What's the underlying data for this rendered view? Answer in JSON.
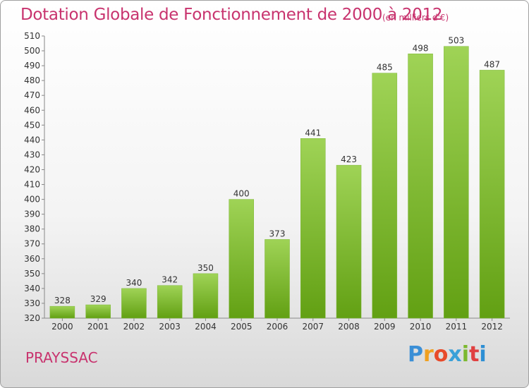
{
  "header": {
    "title": "Dotation Globale de Fonctionnement de 2000 à 2012",
    "unit": "(en milliers d'€)"
  },
  "footer": {
    "commune": "PRAYSSAC",
    "logo_letters": [
      "P",
      "r",
      "o",
      "x",
      "i",
      "t",
      "i"
    ],
    "logo_colors": [
      "#3b8fd6",
      "#f0a020",
      "#e84a2a",
      "#3aa0d8",
      "#7cb82f",
      "#e04040",
      "#2e8fd4"
    ]
  },
  "chart_data": {
    "type": "bar",
    "title": "Dotation Globale de Fonctionnement de 2000 à 2012",
    "subtitle": "(en milliers d'€)",
    "xlabel": "",
    "ylabel": "",
    "categories": [
      "2000",
      "2001",
      "2002",
      "2003",
      "2004",
      "2005",
      "2006",
      "2007",
      "2008",
      "2009",
      "2010",
      "2011",
      "2012"
    ],
    "values": [
      328,
      329,
      340,
      342,
      350,
      400,
      373,
      441,
      423,
      485,
      498,
      503,
      487
    ],
    "ylim": [
      320,
      510
    ],
    "ytick_step": 10,
    "grid": false,
    "bar_color_top": "#9fd356",
    "bar_color_bottom": "#62a013"
  }
}
